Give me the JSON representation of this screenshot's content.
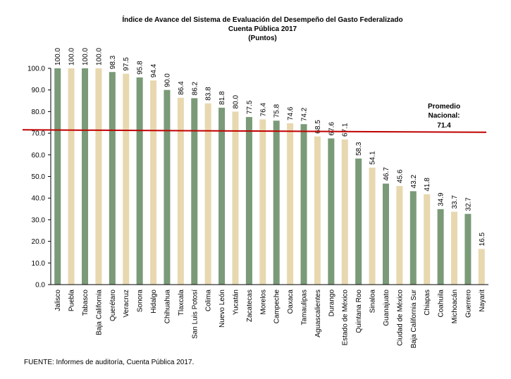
{
  "chart_data": {
    "type": "bar",
    "title": "Índice de Avance del Sistema de Evaluación del Desempeño del Gasto Federalizado",
    "subtitle": "Cuenta Pública 2017",
    "unit_label": "(Puntos)",
    "ylim": [
      0,
      100
    ],
    "yticks": [
      "0.0",
      "10.0",
      "20.0",
      "30.0",
      "40.0",
      "50.0",
      "60.0",
      "70.0",
      "80.0",
      "90.0",
      "100.0"
    ],
    "grid": false,
    "categories": [
      "Jalisco",
      "Puebla",
      "Tabasco",
      "Baja California",
      "Querétaro",
      "Veracruz",
      "Sonora",
      "Hidalgo",
      "Chihuahua",
      "Tlaxcala",
      "San Luis Potosí",
      "Colima",
      "Nuevo León",
      "Yucatán",
      "Zacatecas",
      "Morelos",
      "Campeche",
      "Oaxaca",
      "Tamaulipas",
      "Aguascalientes",
      "Durango",
      "Estado de México",
      "Quintana Roo",
      "Sinaloa",
      "Guanajuato",
      "Ciudad de México",
      "Baja California Sur",
      "Chiapas",
      "Coahuila",
      "Michoacán",
      "Guerrero",
      "Nayarit"
    ],
    "values": [
      100.0,
      100.0,
      100.0,
      100.0,
      98.3,
      97.5,
      95.8,
      94.4,
      90.0,
      86.4,
      86.2,
      83.8,
      81.8,
      80.0,
      77.5,
      76.4,
      75.8,
      74.6,
      74.2,
      68.5,
      67.6,
      67.1,
      58.3,
      54.1,
      46.7,
      45.6,
      43.2,
      41.8,
      34.9,
      33.7,
      32.7,
      16.5
    ],
    "value_labels": [
      "100.0",
      "100.0",
      "100.0",
      "100.0",
      "98.3",
      "97.5",
      "95.8",
      "94.4",
      "90.0",
      "86.4",
      "86.2",
      "83.8",
      "81.8",
      "80.0",
      "77.5",
      "76.4",
      "75.8",
      "74.6",
      "74.2",
      "68.5",
      "67.6",
      "67.1",
      "58.3",
      "54.1",
      "46.7",
      "45.6",
      "43.2",
      "41.8",
      "34.9",
      "33.7",
      "32.7",
      "16.5"
    ],
    "colors": {
      "green": "#7a9a78",
      "beige": "#e8d8b0",
      "average_line": "#c00000",
      "axis": "#000000"
    },
    "bar_color_pattern": [
      "green",
      "beige"
    ],
    "average": {
      "value": 71.4,
      "label_line1": "Promedio",
      "label_line2": "Nacional:",
      "label_value": "71.4"
    }
  },
  "source": "FUENTE: Informes de auditoría, Cuenta Pública 2017."
}
